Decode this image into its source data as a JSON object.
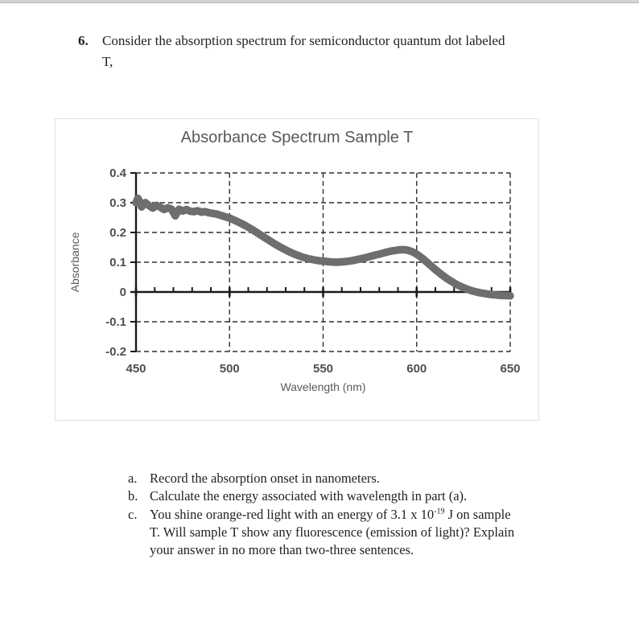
{
  "page": {
    "background": "#ffffff",
    "top_strip_color": "#d4d4d4"
  },
  "question": {
    "number": "6.",
    "lines": [
      "Consider the absorption spectrum for semiconductor quantum dot labeled",
      "T,"
    ]
  },
  "chart_data": {
    "type": "scatter",
    "title": "Absorbance Spectrum Sample T",
    "xlabel": "Wavelength (nm)",
    "ylabel": "Absorbance",
    "xlim": [
      450,
      650
    ],
    "ylim": [
      -0.2,
      0.4
    ],
    "xticks": [
      450,
      500,
      550,
      600,
      650
    ],
    "yticks": [
      0.4,
      0.3,
      0.2,
      0.1,
      0,
      -0.1,
      -0.2
    ],
    "minor_xtick_step": 10,
    "grid": "dashed",
    "legend": false,
    "colors": {
      "curve": "#6e6e6e",
      "grid": "#2f2f2f",
      "axis": "#1a1a1a",
      "axis_titles": "#595959",
      "tick_labels": "#4d4f58",
      "title": "#595959",
      "chart_border": "#e0e0e0"
    },
    "series": [
      {
        "name": "Sample T absorbance",
        "points": [
          [
            450,
            0.3
          ],
          [
            451,
            0.315
          ],
          [
            452,
            0.303
          ],
          [
            453,
            0.286
          ],
          [
            454,
            0.296
          ],
          [
            455,
            0.3
          ],
          [
            457,
            0.29
          ],
          [
            459,
            0.282
          ],
          [
            461,
            0.291
          ],
          [
            463,
            0.285
          ],
          [
            465,
            0.277
          ],
          [
            467,
            0.283
          ],
          [
            469,
            0.278
          ],
          [
            471,
            0.256
          ],
          [
            473,
            0.278
          ],
          [
            475,
            0.272
          ],
          [
            477,
            0.277
          ],
          [
            479,
            0.271
          ],
          [
            481,
            0.27
          ],
          [
            483,
            0.273
          ],
          [
            485,
            0.268
          ],
          [
            487,
            0.27
          ],
          [
            489,
            0.266
          ],
          [
            491,
            0.264
          ],
          [
            493,
            0.262
          ],
          [
            495,
            0.258
          ],
          [
            497,
            0.254
          ],
          [
            500,
            0.248
          ],
          [
            503,
            0.24
          ],
          [
            506,
            0.231
          ],
          [
            509,
            0.221
          ],
          [
            512,
            0.21
          ],
          [
            515,
            0.198
          ],
          [
            518,
            0.186
          ],
          [
            521,
            0.174
          ],
          [
            524,
            0.162
          ],
          [
            527,
            0.151
          ],
          [
            530,
            0.141
          ],
          [
            533,
            0.132
          ],
          [
            536,
            0.124
          ],
          [
            539,
            0.117
          ],
          [
            542,
            0.112
          ],
          [
            545,
            0.108
          ],
          [
            548,
            0.105
          ],
          [
            551,
            0.103
          ],
          [
            554,
            0.101
          ],
          [
            557,
            0.1
          ],
          [
            560,
            0.101
          ],
          [
            563,
            0.103
          ],
          [
            566,
            0.106
          ],
          [
            569,
            0.11
          ],
          [
            572,
            0.114
          ],
          [
            575,
            0.119
          ],
          [
            578,
            0.124
          ],
          [
            581,
            0.129
          ],
          [
            584,
            0.134
          ],
          [
            587,
            0.138
          ],
          [
            590,
            0.141
          ],
          [
            592,
            0.142
          ],
          [
            594,
            0.142
          ],
          [
            596,
            0.139
          ],
          [
            598,
            0.134
          ],
          [
            600,
            0.127
          ],
          [
            602,
            0.118
          ],
          [
            604,
            0.108
          ],
          [
            606,
            0.097
          ],
          [
            608,
            0.086
          ],
          [
            610,
            0.075
          ],
          [
            612,
            0.065
          ],
          [
            614,
            0.055
          ],
          [
            616,
            0.046
          ],
          [
            618,
            0.038
          ],
          [
            620,
            0.03
          ],
          [
            622,
            0.023
          ],
          [
            624,
            0.017
          ],
          [
            626,
            0.012
          ],
          [
            628,
            0.007
          ],
          [
            630,
            0.003
          ],
          [
            632,
            0.0
          ],
          [
            634,
            -0.003
          ],
          [
            636,
            -0.005
          ],
          [
            638,
            -0.007
          ],
          [
            640,
            -0.009
          ],
          [
            642,
            -0.01
          ],
          [
            644,
            -0.011
          ],
          [
            646,
            -0.012
          ],
          [
            648,
            -0.012
          ],
          [
            650,
            -0.013
          ]
        ]
      }
    ]
  },
  "subquestions": {
    "items": [
      {
        "marker": "a.",
        "text": "Record the absorption onset in nanometers."
      },
      {
        "marker": "b.",
        "text": "Calculate the energy associated with wavelength in part (a)."
      },
      {
        "marker": "c.",
        "lines": [
          {
            "before": "You shine orange-red light with an energy of 3.1 x 10",
            "sup": "-19",
            "after": " J on sample"
          },
          {
            "text": "T. Will sample T show any fluorescence (emission of light)? Explain"
          },
          {
            "text": "your answer in no more than two-three sentences."
          }
        ]
      }
    ]
  }
}
